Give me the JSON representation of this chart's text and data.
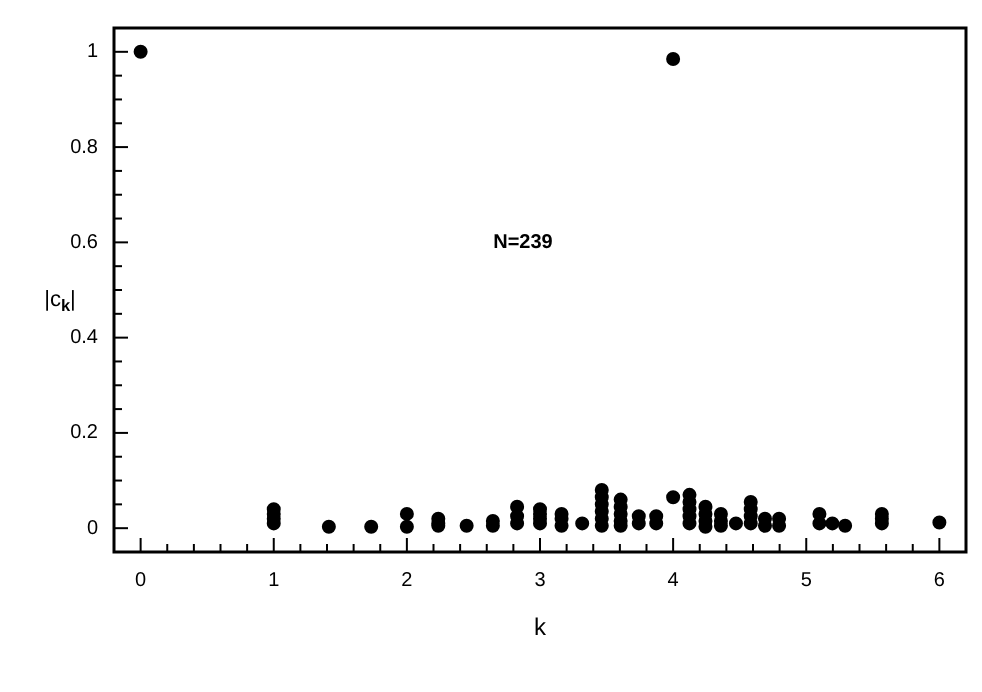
{
  "chart_data": {
    "type": "scatter",
    "xlabel": "k",
    "ylabel": "|c$_{k}$|",
    "annotations": [
      "N=239"
    ],
    "marker": "circle",
    "grid": false,
    "legend": false,
    "xlim": [
      -0.2,
      6.2
    ],
    "ylim": [
      -0.05,
      1.05
    ],
    "xticks": [
      0,
      {
        "value": 0.2,
        "label": null
      },
      {
        "value": 0.4,
        "label": null
      },
      {
        "value": 0.6,
        "label": null
      },
      {
        "value": 0.8,
        "label": null
      },
      1,
      {
        "value": 1.2,
        "label": null
      },
      {
        "value": 1.4,
        "label": null
      },
      {
        "value": 1.6,
        "label": null
      },
      {
        "value": 1.8,
        "label": null
      },
      2,
      {
        "value": 2.2,
        "label": null
      },
      {
        "value": 2.4,
        "label": null
      },
      {
        "value": 2.6,
        "label": null
      },
      {
        "value": 2.8,
        "label": null
      },
      3,
      {
        "value": 3.2,
        "label": null
      },
      {
        "value": 3.4,
        "label": null
      },
      {
        "value": 3.6,
        "label": null
      },
      {
        "value": 3.8,
        "label": null
      },
      4,
      {
        "value": 4.2,
        "label": null
      },
      {
        "value": 4.4,
        "label": null
      },
      {
        "value": 4.6,
        "label": null
      },
      {
        "value": 4.8,
        "label": null
      },
      5,
      {
        "value": 5.2,
        "label": null
      },
      {
        "value": 5.4,
        "label": null
      },
      {
        "value": 5.6,
        "label": null
      },
      {
        "value": 5.8,
        "label": null
      },
      6
    ],
    "yticks": [
      0,
      {
        "value": 0.05,
        "label": null
      },
      {
        "value": 0.1,
        "label": null
      },
      {
        "value": 0.15,
        "label": null
      },
      0.2,
      {
        "value": 0.25,
        "label": null
      },
      {
        "value": 0.3,
        "label": null
      },
      {
        "value": 0.35,
        "label": null
      },
      0.4,
      {
        "value": 0.45,
        "label": null
      },
      {
        "value": 0.5,
        "label": null
      },
      {
        "value": 0.55,
        "label": null
      },
      0.6,
      {
        "value": 0.65,
        "label": null
      },
      {
        "value": 0.7,
        "label": null
      },
      {
        "value": 0.75,
        "label": null
      },
      0.8,
      {
        "value": 0.85,
        "label": null
      },
      {
        "value": 0.9,
        "label": null
      },
      {
        "value": 0.95,
        "label": null
      },
      1
    ],
    "series": [
      {
        "color": "#000000",
        "x": [
          0,
          1,
          1,
          1,
          1,
          1.414,
          1.732,
          2,
          2,
          2.236,
          2.236,
          2.236,
          2.449,
          2.646,
          2.646,
          2.828,
          2.828,
          2.828,
          3,
          3,
          3,
          3,
          3.162,
          3.162,
          3.162,
          3.317,
          3.464,
          3.464,
          3.464,
          3.464,
          3.464,
          3.464,
          3.606,
          3.606,
          3.606,
          3.606,
          3.606,
          3.742,
          3.742,
          3.873,
          3.873,
          4,
          4,
          4.123,
          4.123,
          4.123,
          4.123,
          4.123,
          4.243,
          4.243,
          4.243,
          4.243,
          4.359,
          4.359,
          4.359,
          4.472,
          4.583,
          4.583,
          4.583,
          4.583,
          4.69,
          4.69,
          4.796,
          4.796,
          5.099,
          5.099,
          5.196,
          5.292,
          5.568,
          5.568,
          5.568,
          6
        ],
        "values": [
          1,
          0.04,
          0.03,
          0.02,
          0.01,
          0.003,
          0.003,
          0.03,
          0.003,
          0.02,
          0.01,
          0.005,
          0.005,
          0.015,
          0.005,
          0.045,
          0.025,
          0.01,
          0.04,
          0.03,
          0.02,
          0.01,
          0.03,
          0.02,
          0.005,
          0.01,
          0.08,
          0.065,
          0.05,
          0.035,
          0.02,
          0.005,
          0.06,
          0.045,
          0.03,
          0.015,
          0.005,
          0.025,
          0.01,
          0.025,
          0.01,
          0.985,
          0.065,
          0.07,
          0.055,
          0.04,
          0.025,
          0.01,
          0.045,
          0.03,
          0.015,
          0.003,
          0.03,
          0.015,
          0.005,
          0.01,
          0.055,
          0.04,
          0.025,
          0.01,
          0.02,
          0.005,
          0.02,
          0.005,
          0.03,
          0.01,
          0.01,
          0.005,
          0.03,
          0.02,
          0.01,
          0.012
        ]
      }
    ]
  }
}
